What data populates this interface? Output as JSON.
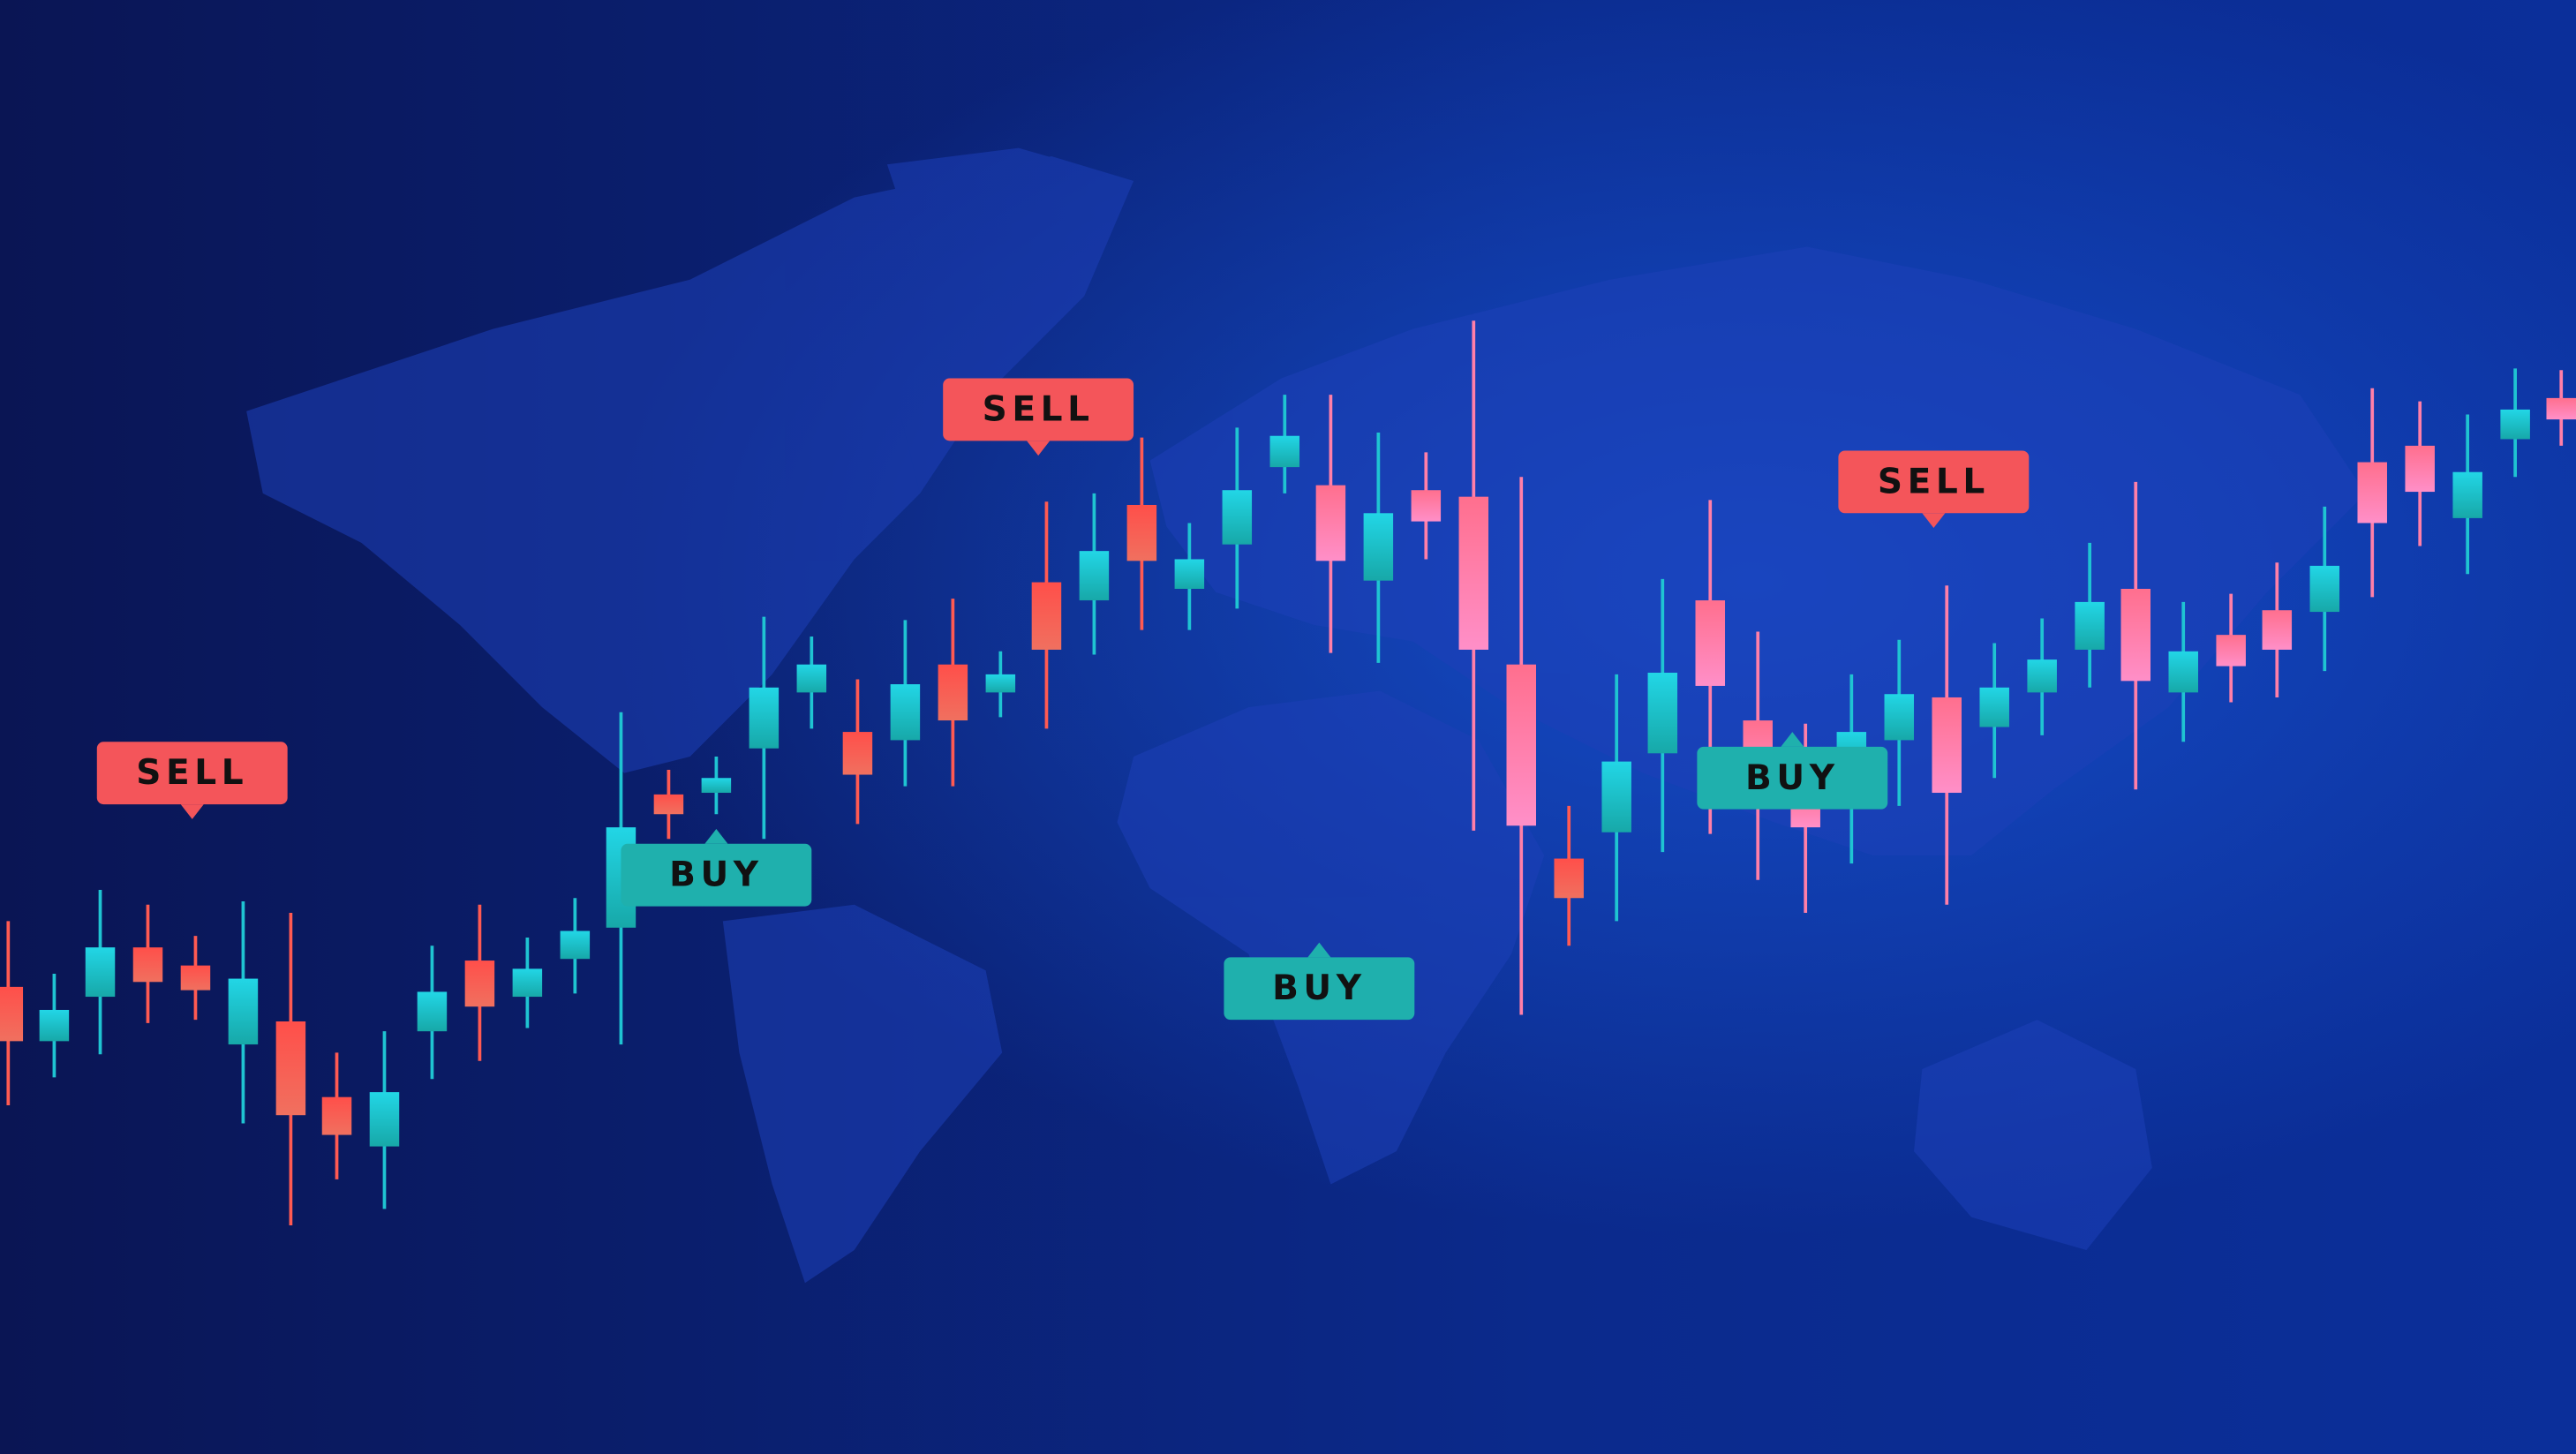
{
  "sell_labels": [
    "SELL",
    "SELL",
    "SELL"
  ],
  "buy_labels": [
    "BUY",
    "BUY",
    "BUY"
  ]
}
